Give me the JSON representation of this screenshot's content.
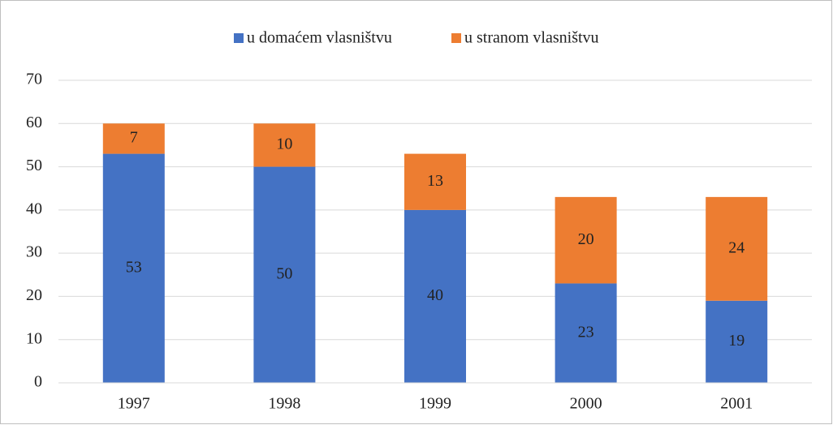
{
  "chart_data": {
    "type": "stacked_bar",
    "categories": [
      "1997",
      "1998",
      "1999",
      "2000",
      "2001"
    ],
    "series": [
      {
        "name": "u domaćem vlasništvu",
        "color": "#4472c4",
        "values": [
          53,
          50,
          40,
          23,
          19
        ]
      },
      {
        "name": "u stranom vlasništvu",
        "color": "#ed7d31",
        "values": [
          7,
          10,
          13,
          20,
          24
        ]
      }
    ],
    "ylim": [
      0,
      70
    ],
    "yticks": [
      0,
      10,
      20,
      30,
      40,
      50,
      60,
      70
    ],
    "grid": true,
    "legend": "top",
    "data_labels": true
  }
}
